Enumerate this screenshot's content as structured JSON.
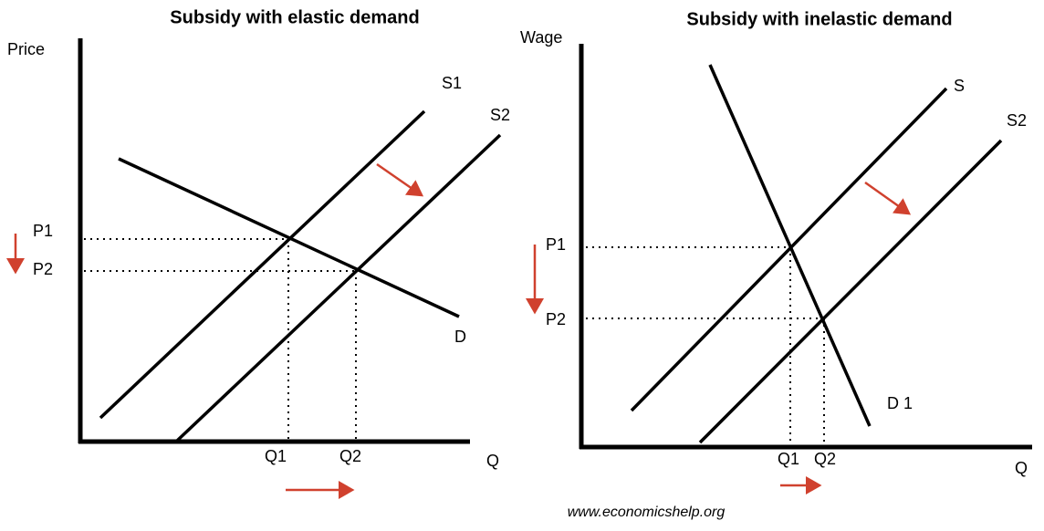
{
  "diagrams": [
    {
      "title": "Subsidy with elastic demand",
      "y_label": "Price",
      "x_label": "Q",
      "curves": [
        "S1",
        "S2",
        "D"
      ],
      "price_labels": [
        "P1",
        "P2"
      ],
      "quantity_labels": [
        "Q1",
        "Q2"
      ]
    },
    {
      "title": "Subsidy with inelastic demand",
      "y_label": "Wage",
      "x_label": "Q",
      "curves": [
        "S",
        "S2",
        "D 1"
      ],
      "price_labels": [
        "P1",
        "P2"
      ],
      "quantity_labels": [
        "Q1",
        "Q2"
      ]
    }
  ],
  "footer": "www.economicshelp.org"
}
